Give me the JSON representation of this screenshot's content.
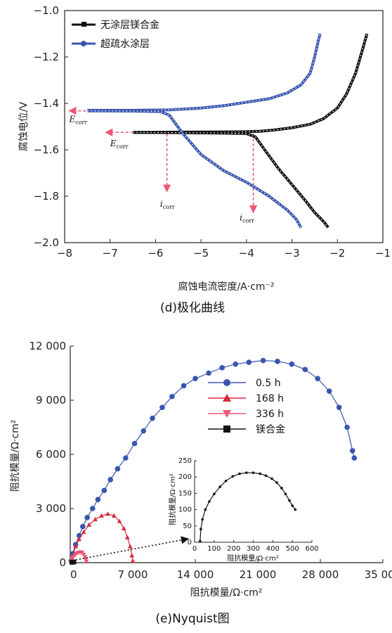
{
  "colors": {
    "black_series": "#111111",
    "blue_series": "#3a55b0",
    "pink": "#ee5577",
    "red": "#d62a3c"
  },
  "chart_data": [
    {
      "type": "line",
      "caption": "(d)极化曲线",
      "xlabel": "腐蚀电流密度/A·cm⁻²",
      "ylabel": "腐蚀电位/V",
      "xlim": [
        -8,
        -1
      ],
      "ylim": [
        -2.0,
        -1.0
      ],
      "xticks": [
        "−8",
        "−7",
        "−6",
        "−5",
        "−4",
        "−3",
        "−2",
        "−1"
      ],
      "yticks": [
        "−1.0",
        "−1.2",
        "−1.4",
        "−1.6",
        "−1.8",
        "−2.0"
      ],
      "legend_position": "top-left",
      "series": [
        {
          "name": "无涂层镁合金",
          "color": "#111111",
          "anodic": [
            [
              -6.5,
              -1.525
            ],
            [
              -5.5,
              -1.524
            ],
            [
              -4.5,
              -1.523
            ],
            [
              -4.0,
              -1.522
            ],
            [
              -3.7,
              -1.52
            ],
            [
              -3.4,
              -1.515
            ],
            [
              -3.0,
              -1.505
            ],
            [
              -2.6,
              -1.49
            ],
            [
              -2.3,
              -1.465
            ],
            [
              -2.0,
              -1.42
            ],
            [
              -1.8,
              -1.36
            ],
            [
              -1.6,
              -1.27
            ],
            [
              -1.45,
              -1.17
            ],
            [
              -1.35,
              -1.1
            ]
          ],
          "cathodic": [
            [
              -6.5,
              -1.525
            ],
            [
              -5.5,
              -1.526
            ],
            [
              -4.5,
              -1.528
            ],
            [
              -4.0,
              -1.53
            ],
            [
              -3.8,
              -1.545
            ],
            [
              -3.6,
              -1.6
            ],
            [
              -3.3,
              -1.68
            ],
            [
              -3.0,
              -1.75
            ],
            [
              -2.7,
              -1.82
            ],
            [
              -2.5,
              -1.87
            ],
            [
              -2.3,
              -1.91
            ],
            [
              -2.2,
              -1.935
            ]
          ]
        },
        {
          "name": "超疏水涂层",
          "color": "#3a55b0",
          "anodic": [
            [
              -7.5,
              -1.43
            ],
            [
              -6.5,
              -1.43
            ],
            [
              -5.7,
              -1.428
            ],
            [
              -5.0,
              -1.42
            ],
            [
              -4.5,
              -1.41
            ],
            [
              -4.0,
              -1.395
            ],
            [
              -3.5,
              -1.38
            ],
            [
              -3.1,
              -1.355
            ],
            [
              -2.8,
              -1.32
            ],
            [
              -2.6,
              -1.27
            ],
            [
              -2.5,
              -1.2
            ],
            [
              -2.42,
              -1.13
            ],
            [
              -2.38,
              -1.1
            ]
          ],
          "cathodic": [
            [
              -7.5,
              -1.432
            ],
            [
              -6.5,
              -1.433
            ],
            [
              -5.9,
              -1.435
            ],
            [
              -5.7,
              -1.45
            ],
            [
              -5.4,
              -1.53
            ],
            [
              -5.0,
              -1.62
            ],
            [
              -4.5,
              -1.69
            ],
            [
              -4.0,
              -1.74
            ],
            [
              -3.5,
              -1.8
            ],
            [
              -3.1,
              -1.86
            ],
            [
              -2.9,
              -1.9
            ],
            [
              -2.8,
              -1.935
            ]
          ]
        }
      ],
      "annotations": [
        {
          "text": "E",
          "sub": "corr",
          "x": -7.9,
          "y": -1.48
        },
        {
          "text": "E",
          "sub": "corr",
          "x": -7.0,
          "y": -1.585
        },
        {
          "text": "i",
          "sub": "corr",
          "x": -5.9,
          "y": -1.845
        },
        {
          "text": "i",
          "sub": "corr",
          "x": -4.15,
          "y": -1.905
        }
      ]
    },
    {
      "type": "scatter",
      "caption": "(e)Nyquist图",
      "xlabel": "阻抗模量/Ω·cm²",
      "ylabel": "阻抗模量/Ω·cm²",
      "xlim": [
        0,
        35000
      ],
      "ylim": [
        0,
        12000
      ],
      "xticks": [
        "0",
        "7 000",
        "14 000",
        "21 000",
        "28 000",
        "35 000"
      ],
      "yticks": [
        "0",
        "3 000",
        "6 000",
        "9 000",
        "12 000"
      ],
      "legend_position": "top-right",
      "series": [
        {
          "name": "0.5 h",
          "marker": "circle",
          "color": "#3a55b0",
          "points": [
            [
              100,
              100
            ],
            [
              300,
              500
            ],
            [
              600,
              1000
            ],
            [
              1000,
              1500
            ],
            [
              1400,
              2000
            ],
            [
              1900,
              2500
            ],
            [
              2500,
              3000
            ],
            [
              3100,
              3500
            ],
            [
              3800,
              4000
            ],
            [
              4500,
              4600
            ],
            [
              5300,
              5200
            ],
            [
              6200,
              5800
            ],
            [
              7200,
              6600
            ],
            [
              8200,
              7300
            ],
            [
              9200,
              8000
            ],
            [
              10300,
              8600
            ],
            [
              11400,
              9200
            ],
            [
              12700,
              9800
            ],
            [
              14000,
              10200
            ],
            [
              15500,
              10500
            ],
            [
              17000,
              10800
            ],
            [
              18500,
              11000
            ],
            [
              20000,
              11100
            ],
            [
              21600,
              11200
            ],
            [
              23200,
              11150
            ],
            [
              24800,
              11000
            ],
            [
              26300,
              10700
            ],
            [
              27700,
              10200
            ],
            [
              29000,
              9500
            ],
            [
              30100,
              8600
            ],
            [
              31000,
              7500
            ],
            [
              31600,
              6200
            ],
            [
              31800,
              5800
            ]
          ]
        },
        {
          "name": "168 h",
          "marker": "triangle",
          "color": "#d62a3c",
          "points": [
            [
              100,
              80
            ],
            [
              300,
              400
            ],
            [
              600,
              900
            ],
            [
              1000,
              1300
            ],
            [
              1500,
              1700
            ],
            [
              2100,
              2100
            ],
            [
              2800,
              2400
            ],
            [
              3500,
              2600
            ],
            [
              4200,
              2700
            ],
            [
              4900,
              2600
            ],
            [
              5500,
              2300
            ],
            [
              6000,
              1900
            ],
            [
              6400,
              1400
            ],
            [
              6700,
              900
            ],
            [
              6900,
              400
            ],
            [
              7000,
              100
            ]
          ]
        },
        {
          "name": "336 h",
          "marker": "triangle-down",
          "color": "#ee5577",
          "points": [
            [
              50,
              30
            ],
            [
              150,
              150
            ],
            [
              300,
              300
            ],
            [
              500,
              400
            ],
            [
              700,
              500
            ],
            [
              900,
              550
            ],
            [
              1100,
              580
            ],
            [
              1300,
              550
            ],
            [
              1500,
              450
            ],
            [
              1650,
              320
            ],
            [
              1750,
              180
            ],
            [
              1800,
              60
            ]
          ]
        },
        {
          "name": "镁合金",
          "marker": "square",
          "color": "#111111",
          "points": [
            [
              200,
              20
            ],
            [
              400,
              40
            ]
          ]
        }
      ],
      "inset": {
        "xlabel": "阻抗模量/Ω·cm²",
        "ylabel": "阻抗模量/Ω·cm²",
        "xlim": [
          0,
          600
        ],
        "ylim": [
          0,
          250
        ],
        "xticks": [
          "0",
          "100",
          "200",
          "300",
          "400",
          "500",
          "600"
        ],
        "yticks": [
          "0",
          "50",
          "100",
          "150",
          "200",
          "250"
        ],
        "points": [
          [
            28,
            3
          ],
          [
            32,
            40
          ],
          [
            40,
            70
          ],
          [
            55,
            100
          ],
          [
            75,
            125
          ],
          [
            100,
            148
          ],
          [
            130,
            170
          ],
          [
            160,
            188
          ],
          [
            195,
            202
          ],
          [
            230,
            210
          ],
          [
            265,
            213
          ],
          [
            300,
            213
          ],
          [
            335,
            210
          ],
          [
            365,
            204
          ],
          [
            395,
            195
          ],
          [
            420,
            183
          ],
          [
            445,
            166
          ],
          [
            465,
            148
          ],
          [
            485,
            128
          ],
          [
            500,
            112
          ],
          [
            515,
            100
          ]
        ]
      }
    }
  ]
}
